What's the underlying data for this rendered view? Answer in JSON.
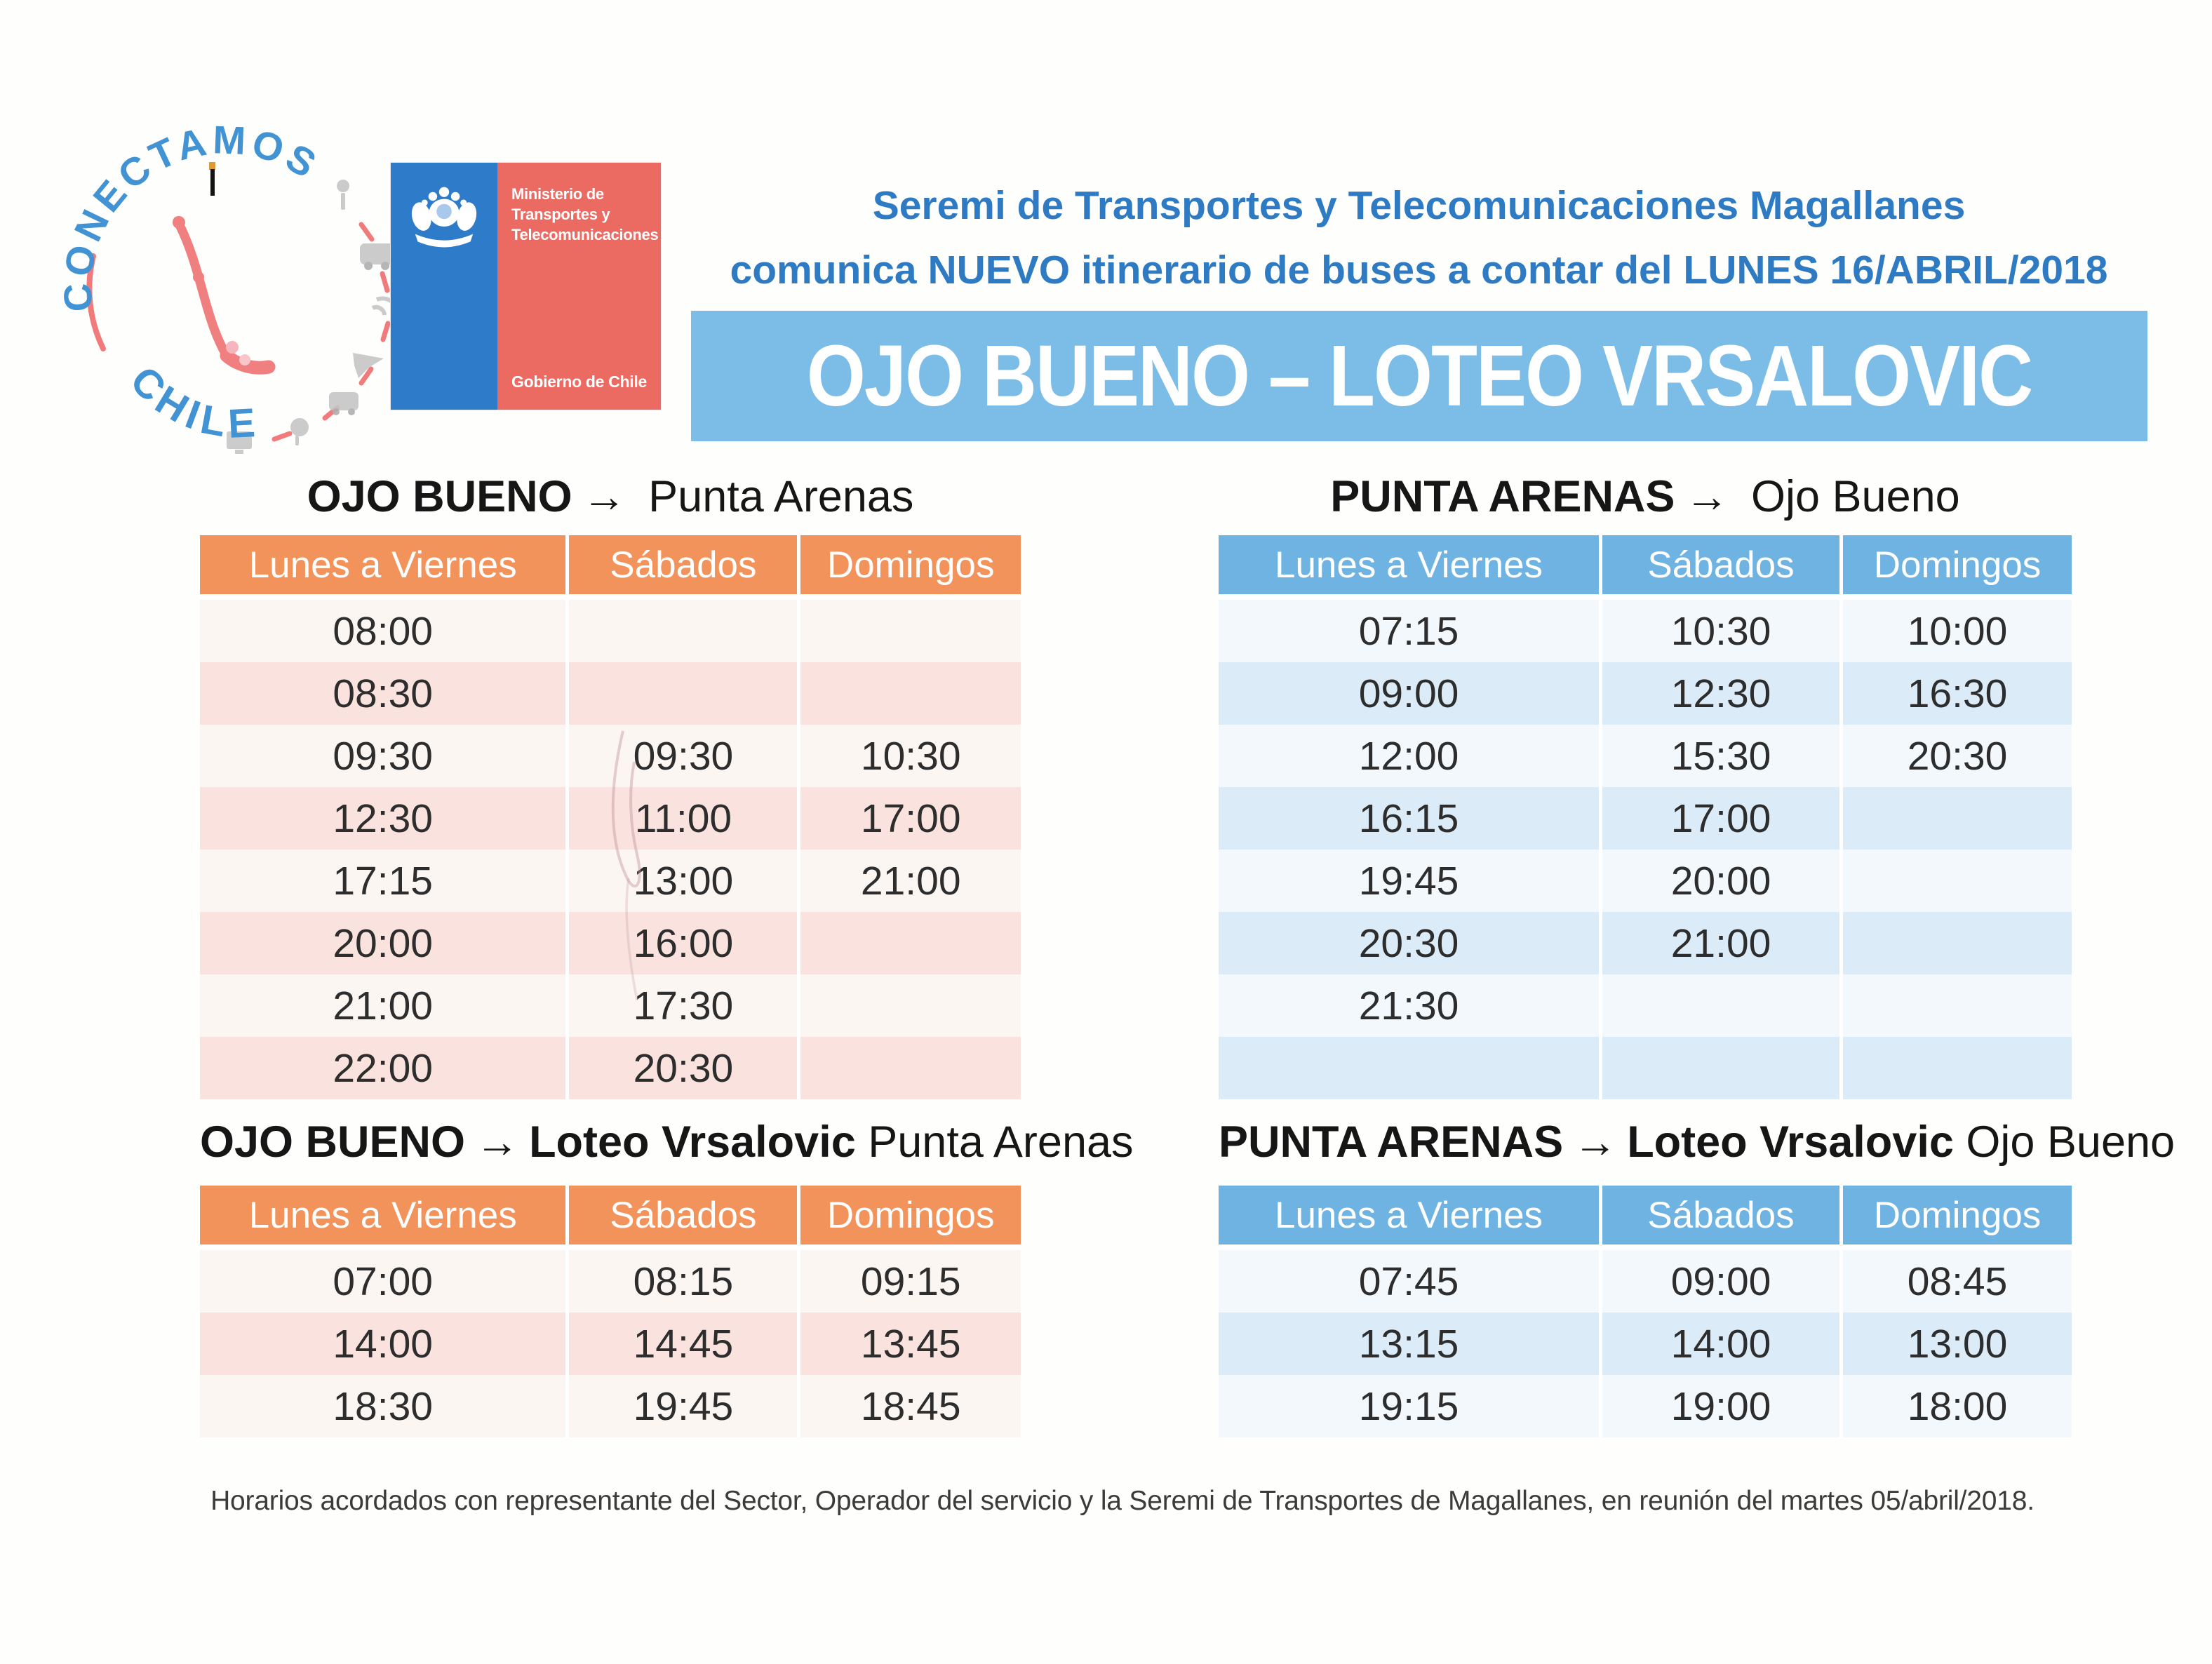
{
  "logos": {
    "conectamos": {
      "arc_top": "CONECTAMOS",
      "arc_bottom": "CHILE"
    },
    "ministerio": {
      "line1": "Ministerio de",
      "line2": "Transportes y",
      "line3": "Telecomunicaciones",
      "footer": "Gobierno de Chile"
    }
  },
  "header": {
    "line1": "Seremi de Transportes y Telecomunicaciones Magallanes",
    "line2": "comunica NUEVO itinerario de buses a contar del LUNES 16/ABRIL/2018",
    "banner": "OJO BUENO – LOTEO VRSALOVIC"
  },
  "tables": [
    {
      "title_from": "OJO BUENO",
      "arrow": "→",
      "title_via": "",
      "title_to": "Punta Arenas",
      "theme": "orange",
      "columns": [
        "Lunes a Viernes",
        "Sábados",
        "Domingos"
      ],
      "rows": [
        [
          "08:00",
          "",
          ""
        ],
        [
          "08:30",
          "",
          ""
        ],
        [
          "09:30",
          "09:30",
          "10:30"
        ],
        [
          "12:30",
          "11:00",
          "17:00"
        ],
        [
          "17:15",
          "13:00",
          "21:00"
        ],
        [
          "20:00",
          "16:00",
          ""
        ],
        [
          "21:00",
          "17:30",
          ""
        ],
        [
          "22:00",
          "20:30",
          ""
        ]
      ]
    },
    {
      "title_from": "PUNTA ARENAS",
      "arrow": "→",
      "title_via": "",
      "title_to": "Ojo Bueno",
      "theme": "blue",
      "columns": [
        "Lunes a Viernes",
        "Sábados",
        "Domingos"
      ],
      "rows": [
        [
          "07:15",
          "10:30",
          "10:00"
        ],
        [
          "09:00",
          "12:30",
          "16:30"
        ],
        [
          "12:00",
          "15:30",
          "20:30"
        ],
        [
          "16:15",
          "17:00",
          ""
        ],
        [
          "19:45",
          "20:00",
          ""
        ],
        [
          "20:30",
          "21:00",
          ""
        ],
        [
          "21:30",
          "",
          ""
        ],
        [
          "",
          "",
          ""
        ]
      ]
    },
    {
      "title_from": "OJO BUENO",
      "arrow": "→",
      "title_via": "Loteo Vrsalovic",
      "title_to": "Punta Arenas",
      "theme": "orange",
      "columns": [
        "Lunes a Viernes",
        "Sábados",
        "Domingos"
      ],
      "rows": [
        [
          "07:00",
          "08:15",
          "09:15"
        ],
        [
          "14:00",
          "14:45",
          "13:45"
        ],
        [
          "18:30",
          "19:45",
          "18:45"
        ]
      ]
    },
    {
      "title_from": "PUNTA ARENAS",
      "arrow": "→",
      "title_via": "Loteo Vrsalovic",
      "title_to": "Ojo Bueno",
      "theme": "blue",
      "columns": [
        "Lunes a Viernes",
        "Sábados",
        "Domingos"
      ],
      "rows": [
        [
          "07:45",
          "09:00",
          "08:45"
        ],
        [
          "13:15",
          "14:00",
          "13:00"
        ],
        [
          "19:15",
          "19:00",
          "18:00"
        ]
      ]
    }
  ],
  "footer": {
    "note": "Horarios acordados con representante del Sector, Operador del servicio y la Seremi de Transportes de Magallanes, en reunión del martes 05/abril/2018."
  },
  "colors": {
    "header_text_blue": "#2F7BC3",
    "banner_blue": "#7CBDE8",
    "table_header_orange": "#F2935C",
    "row_pink": "#FAE3DE",
    "row_warm_white": "#FCF6F3",
    "table_header_blue": "#6FB3E3",
    "row_light_blue": "#DBECF8",
    "row_cool_white": "#F2F8FC",
    "ministry_blue": "#2E7CC9",
    "ministry_red": "#EB6B62",
    "logo_text_blue": "#4193D3",
    "logo_arc_red": "#F17A7A",
    "time_text": "#2D2D2D"
  }
}
